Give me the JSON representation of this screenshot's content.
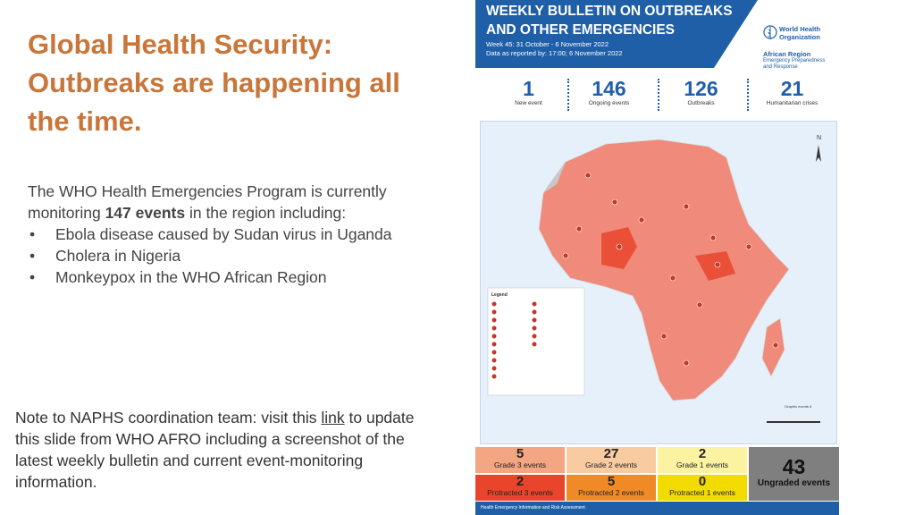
{
  "slide": {
    "title": "Global Health Security: Outbreaks are happening all the time.",
    "intro_pre": "The WHO Health Emergencies Program is currently monitoring ",
    "intro_bold": "147 events",
    "intro_post": " in the region including:",
    "bullets": [
      "Ebola disease caused by Sudan virus in Uganda",
      "Cholera in Nigeria",
      "Monkeypox in the WHO African Region"
    ],
    "note_pre": "Note to NAPHS coordination team: visit this ",
    "note_link": "link",
    "note_post": " to update this slide from WHO AFRO including a screenshot of the latest weekly bulletin and current event-monitoring information."
  },
  "bulletin": {
    "title_line1": "WEEKLY BULLETIN ON OUTBREAKS",
    "title_line2": "AND OTHER EMERGENCIES",
    "week": "Week 45: 31 October - 6 November 2022",
    "reported": "Data as reported by:  17:00; 6 November 2022",
    "org_line1": "World Health",
    "org_line2": "Organization",
    "region": "African Region",
    "region_sub": "Emergency Preparedness and Response",
    "stats": [
      {
        "value": "1",
        "label": "New event"
      },
      {
        "value": "146",
        "label": "Ongoing events"
      },
      {
        "value": "126",
        "label": "Outbreaks"
      },
      {
        "value": "21",
        "label": "Humanitarian crises"
      }
    ],
    "legend_title": "Legend",
    "compass": "N",
    "scale_label": "Graphic events #",
    "grades": [
      {
        "value": "5",
        "label": "Grade 3 events",
        "color": "#f4a582"
      },
      {
        "value": "27",
        "label": "Grade 2 events",
        "color": "#f8cba0"
      },
      {
        "value": "2",
        "label": "Grade 1 events",
        "color": "#fbf3a2"
      },
      {
        "value": "2",
        "label": "Protracted 3 events",
        "color": "#e8452c"
      },
      {
        "value": "5",
        "label": "Protracted 2 events",
        "color": "#f08a26"
      },
      {
        "value": "0",
        "label": "Protracted 1 events",
        "color": "#f2dc00"
      }
    ],
    "ungraded_value": "43",
    "ungraded_label": "Ungraded events",
    "ungraded_color": "#7f7f7f",
    "footer": "Health Emergency Information and Risk Assessment"
  }
}
